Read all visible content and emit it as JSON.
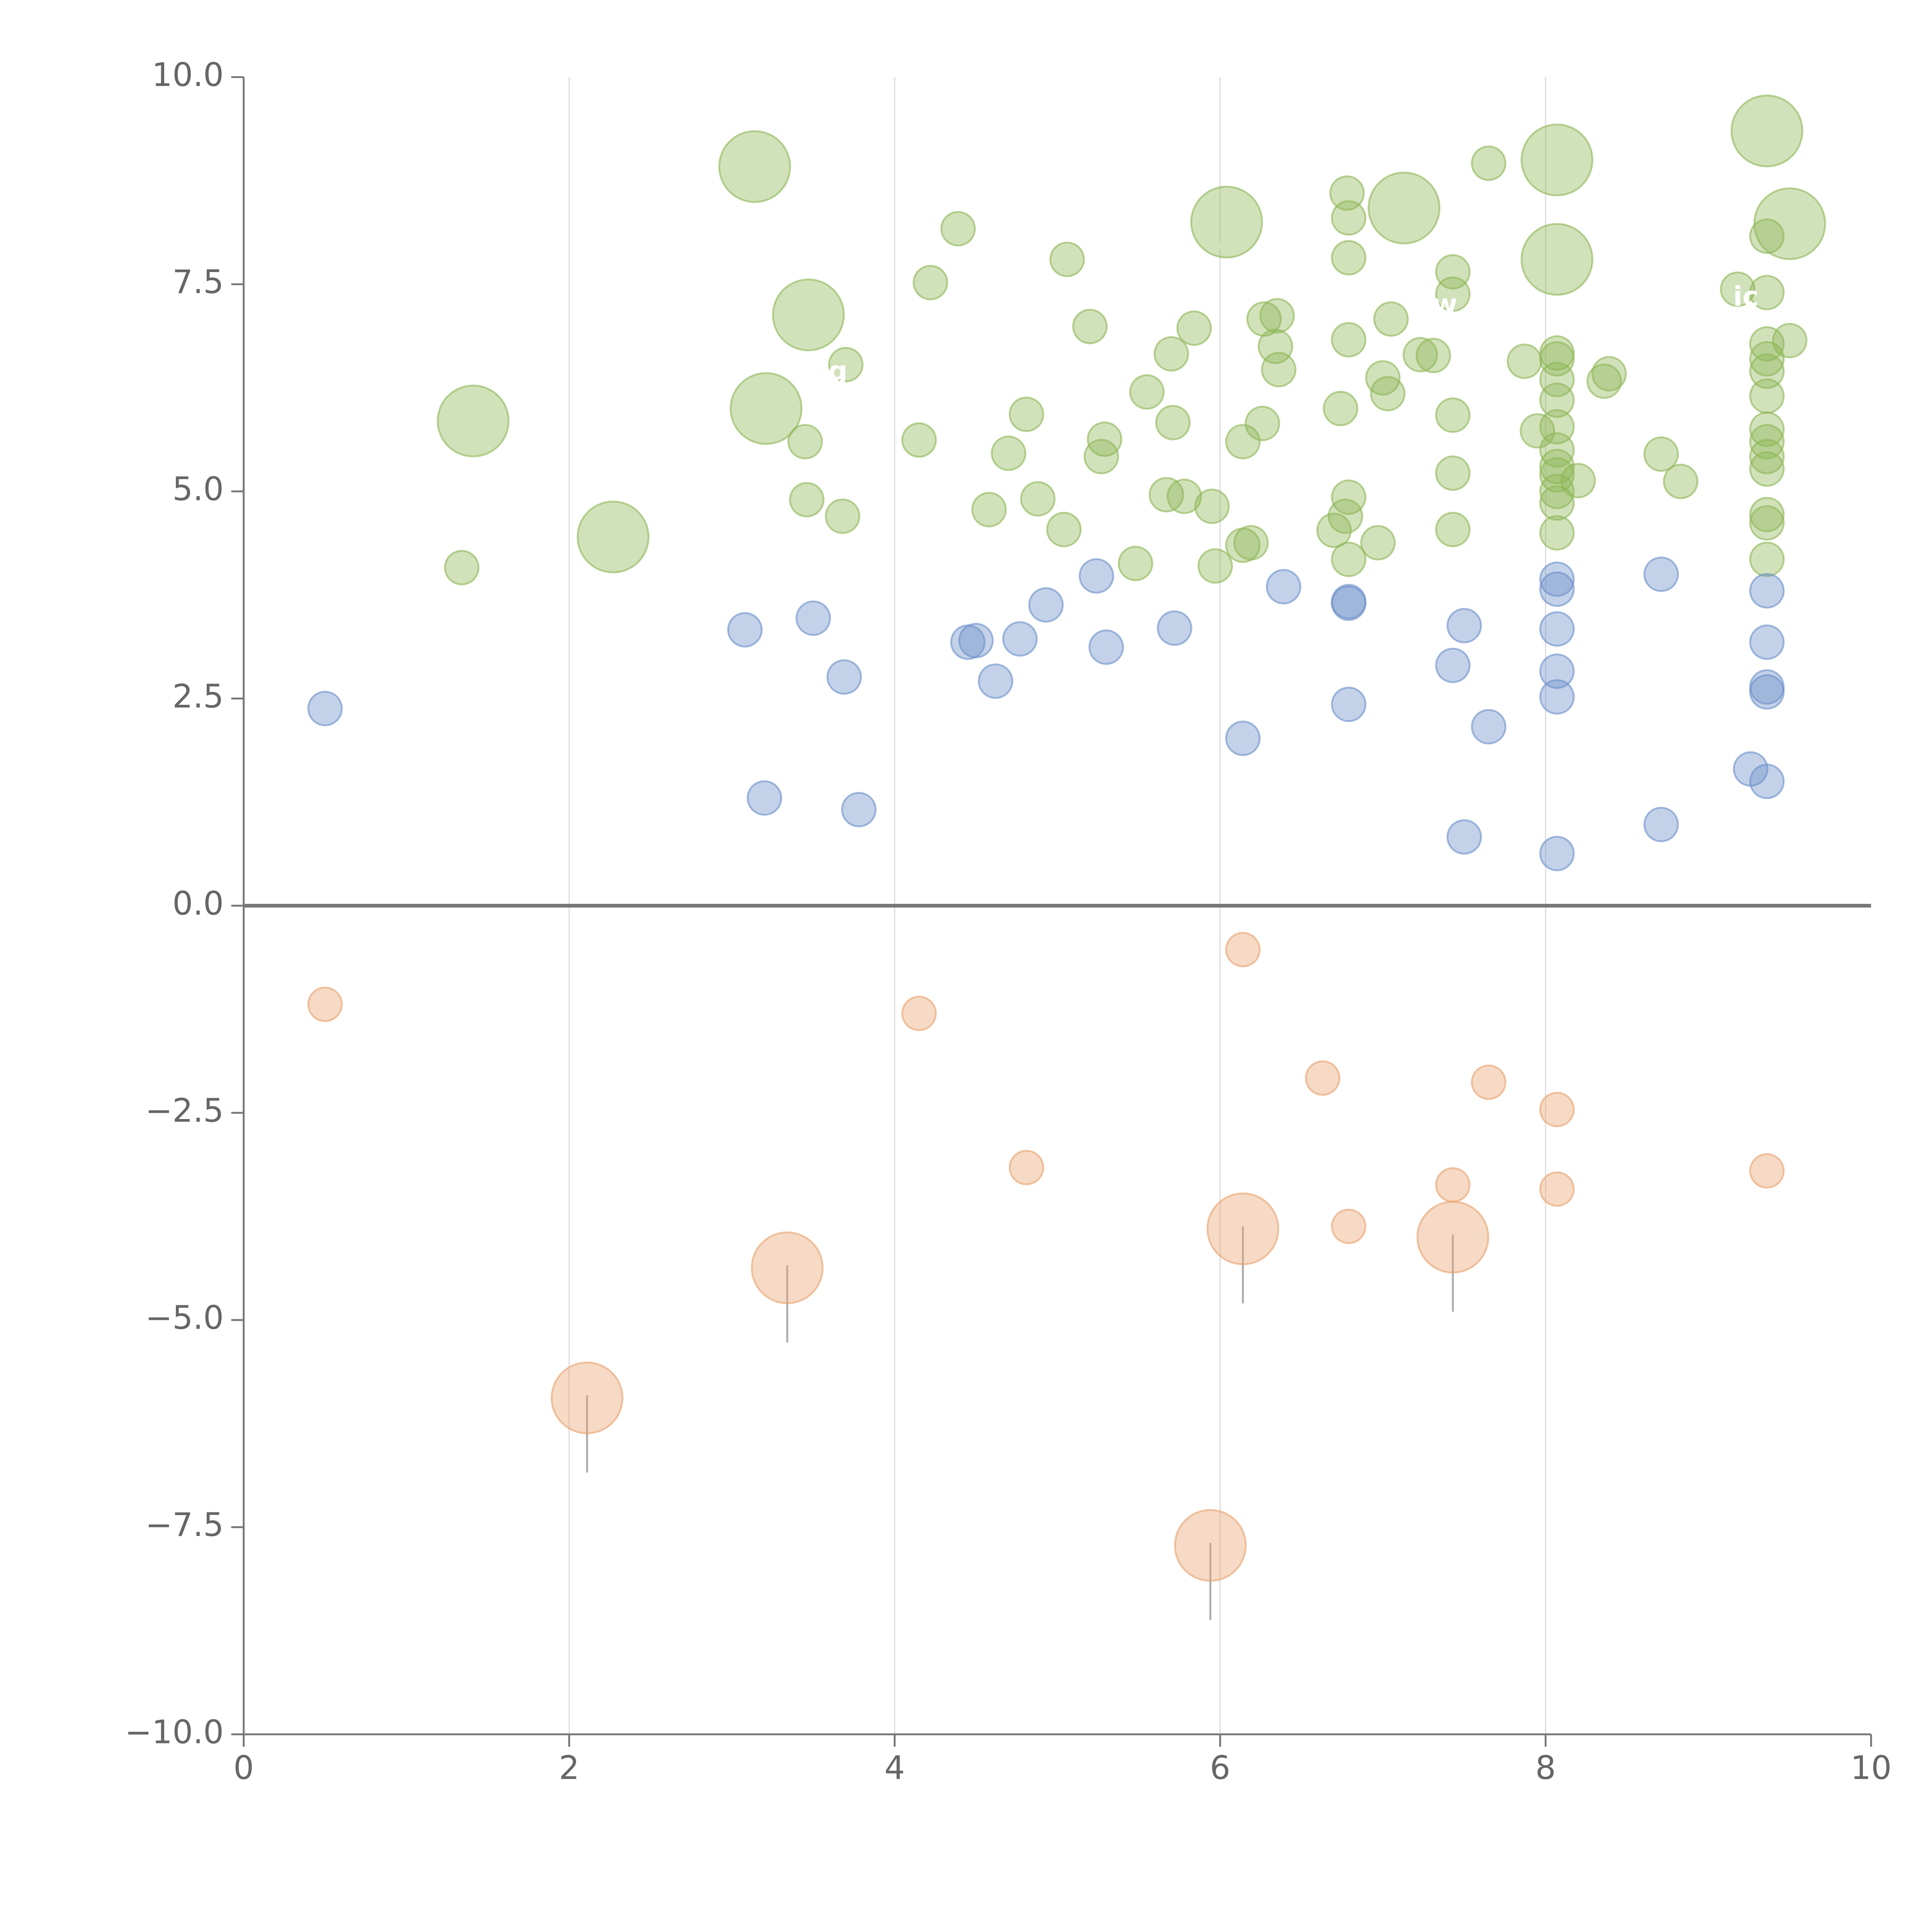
{
  "chart_data": {
    "type": "scatter",
    "title": "",
    "xlabel": "",
    "ylabel": "",
    "xlim": [
      0,
      10
    ],
    "ylim": [
      -10,
      10
    ],
    "x_ticks": [
      "0",
      "2",
      "4",
      "6",
      "8",
      "10"
    ],
    "y_ticks": [
      "10.0",
      "7.5",
      "5.0",
      "2.5",
      "0.0",
      "−2.5",
      "−5.0",
      "−7.5",
      "−10.0"
    ],
    "x_tick_values": [
      0,
      2,
      4,
      6,
      8,
      10
    ],
    "y_tick_values": [
      10,
      7.5,
      5,
      2.5,
      0,
      -2.5,
      -5,
      -7.5,
      -10
    ],
    "vertical_grid": true,
    "horizontal_grid": false,
    "zero_line": true,
    "series": [
      {
        "name": "green",
        "color": "#8db655",
        "points": [
          [
            3.14,
            8.92,
            2
          ],
          [
            3.47,
            7.13,
            2
          ],
          [
            3.21,
            6.0,
            2
          ],
          [
            1.41,
            5.85,
            2
          ],
          [
            2.27,
            4.45,
            2
          ],
          [
            1.34,
            4.08,
            1
          ],
          [
            6.04,
            8.25,
            2
          ],
          [
            7.13,
            8.42,
            2
          ],
          [
            8.07,
            9.0,
            2
          ],
          [
            9.36,
            9.35,
            2
          ],
          [
            9.5,
            8.23,
            2
          ],
          [
            8.07,
            7.8,
            2
          ],
          [
            4.39,
            8.17,
            1
          ],
          [
            4.22,
            7.52,
            1
          ],
          [
            5.06,
            7.8,
            1
          ],
          [
            5.2,
            6.99,
            1
          ],
          [
            5.84,
            6.97,
            1
          ],
          [
            5.7,
            6.66,
            1
          ],
          [
            5.55,
            6.2,
            1
          ],
          [
            5.71,
            5.83,
            1
          ],
          [
            6.27,
            7.08,
            1
          ],
          [
            6.35,
            7.12,
            1
          ],
          [
            6.34,
            6.75,
            1
          ],
          [
            6.36,
            6.47,
            1
          ],
          [
            6.26,
            5.82,
            1
          ],
          [
            6.14,
            5.6,
            1
          ],
          [
            6.78,
            8.6,
            1
          ],
          [
            6.79,
            8.3,
            1
          ],
          [
            6.79,
            7.82,
            1
          ],
          [
            6.79,
            6.83,
            1
          ],
          [
            6.74,
            6.0,
            1
          ],
          [
            7.05,
            7.08,
            1
          ],
          [
            7.0,
            6.37,
            1
          ],
          [
            7.03,
            6.18,
            1
          ],
          [
            7.23,
            6.65,
            1
          ],
          [
            7.31,
            6.64,
            1
          ],
          [
            7.43,
            7.65,
            1
          ],
          [
            7.43,
            7.38,
            1
          ],
          [
            7.43,
            5.92,
            1
          ],
          [
            7.43,
            5.22,
            1
          ],
          [
            7.43,
            4.54,
            1
          ],
          [
            7.65,
            8.96,
            1
          ],
          [
            7.87,
            6.57,
            1
          ],
          [
            7.95,
            5.73,
            1
          ],
          [
            8.07,
            6.67,
            1
          ],
          [
            8.07,
            6.6,
            1
          ],
          [
            8.07,
            6.35,
            1
          ],
          [
            8.07,
            6.1,
            1
          ],
          [
            8.07,
            5.78,
            1
          ],
          [
            8.07,
            5.5,
            1
          ],
          [
            8.07,
            5.3,
            1
          ],
          [
            8.07,
            5.2,
            1
          ],
          [
            8.07,
            5.0,
            1
          ],
          [
            8.07,
            4.86,
            1
          ],
          [
            8.07,
            4.5,
            1
          ],
          [
            8.2,
            5.13,
            1
          ],
          [
            8.36,
            6.33,
            1
          ],
          [
            8.39,
            6.42,
            1
          ],
          [
            8.71,
            5.45,
            1
          ],
          [
            8.83,
            5.12,
            1
          ],
          [
            9.18,
            7.44,
            1
          ],
          [
            9.36,
            8.08,
            1
          ],
          [
            9.36,
            7.4,
            1
          ],
          [
            9.36,
            6.78,
            1
          ],
          [
            9.36,
            6.6,
            1
          ],
          [
            9.36,
            6.45,
            1
          ],
          [
            9.36,
            6.15,
            1
          ],
          [
            9.36,
            5.75,
            1
          ],
          [
            9.36,
            5.6,
            1
          ],
          [
            9.36,
            5.42,
            1
          ],
          [
            9.36,
            5.27,
            1
          ],
          [
            9.36,
            4.72,
            1
          ],
          [
            9.36,
            4.62,
            1
          ],
          [
            9.36,
            4.18,
            1
          ],
          [
            9.5,
            6.82,
            1
          ],
          [
            3.7,
            6.53,
            1
          ],
          [
            3.45,
            5.6,
            1
          ],
          [
            4.15,
            5.62,
            1
          ],
          [
            4.81,
            5.93,
            1
          ],
          [
            4.7,
            5.46,
            1
          ],
          [
            5.29,
            5.63,
            1
          ],
          [
            5.27,
            5.42,
            1
          ],
          [
            3.46,
            4.9,
            1
          ],
          [
            3.68,
            4.7,
            1
          ],
          [
            4.58,
            4.78,
            1
          ],
          [
            4.88,
            4.91,
            1
          ],
          [
            5.04,
            4.54,
            1
          ],
          [
            5.48,
            4.13,
            1
          ],
          [
            5.67,
            4.96,
            1
          ],
          [
            5.78,
            4.94,
            1
          ],
          [
            5.95,
            4.82,
            1
          ],
          [
            5.97,
            4.1,
            1
          ],
          [
            6.14,
            4.35,
            1
          ],
          [
            6.19,
            4.38,
            1
          ],
          [
            6.7,
            4.53,
            1
          ],
          [
            6.77,
            4.7,
            1
          ],
          [
            6.79,
            4.93,
            1
          ],
          [
            6.79,
            4.18,
            1
          ],
          [
            6.97,
            4.38,
            1
          ]
        ]
      },
      {
        "name": "blue",
        "color": "#6b8fc9",
        "points": [
          [
            0.5,
            2.38,
            1
          ],
          [
            3.08,
            3.33,
            1
          ],
          [
            3.5,
            3.47,
            1
          ],
          [
            3.69,
            2.76,
            1
          ],
          [
            3.2,
            1.3,
            1
          ],
          [
            3.78,
            1.16,
            1
          ],
          [
            4.45,
            3.18,
            1
          ],
          [
            4.5,
            3.2,
            1
          ],
          [
            4.77,
            3.22,
            1
          ],
          [
            4.93,
            3.63,
            1
          ],
          [
            4.62,
            2.71,
            1
          ],
          [
            5.24,
            3.98,
            1
          ],
          [
            5.3,
            3.12,
            1
          ],
          [
            5.72,
            3.35,
            1
          ],
          [
            6.14,
            2.02,
            1
          ],
          [
            6.39,
            3.85,
            1
          ],
          [
            6.79,
            3.67,
            1
          ],
          [
            6.79,
            3.65,
            1
          ],
          [
            6.79,
            2.43,
            1
          ],
          [
            7.43,
            2.9,
            1
          ],
          [
            7.5,
            3.38,
            1
          ],
          [
            7.65,
            2.16,
            1
          ],
          [
            7.5,
            0.83,
            1
          ],
          [
            8.07,
            3.94,
            1
          ],
          [
            8.07,
            3.82,
            1
          ],
          [
            8.07,
            3.34,
            1
          ],
          [
            8.07,
            2.83,
            1
          ],
          [
            8.07,
            2.52,
            1
          ],
          [
            8.07,
            0.63,
            1
          ],
          [
            8.71,
            4.0,
            1
          ],
          [
            8.71,
            0.98,
            1
          ],
          [
            9.36,
            3.8,
            1
          ],
          [
            9.36,
            3.18,
            1
          ],
          [
            9.36,
            2.64,
            1
          ],
          [
            9.36,
            2.58,
            1
          ],
          [
            9.26,
            1.65,
            1
          ],
          [
            9.36,
            1.5,
            1
          ]
        ]
      },
      {
        "name": "orange",
        "color": "#e8a26e",
        "points": [
          [
            0.5,
            -1.19,
            1
          ],
          [
            4.15,
            -1.3,
            1
          ],
          [
            6.14,
            -0.53,
            1
          ],
          [
            6.63,
            -2.08,
            1
          ],
          [
            7.65,
            -2.13,
            1
          ],
          [
            8.07,
            -2.46,
            1
          ],
          [
            4.81,
            -3.16,
            1
          ],
          [
            7.43,
            -3.37,
            1
          ],
          [
            8.07,
            -3.42,
            1
          ],
          [
            9.36,
            -3.2,
            1
          ],
          [
            6.79,
            -3.87,
            1
          ],
          [
            3.34,
            -4.37,
            2
          ],
          [
            6.14,
            -3.9,
            2
          ],
          [
            7.43,
            -4.0,
            2
          ],
          [
            2.11,
            -5.94,
            2
          ],
          [
            5.94,
            -7.72,
            2
          ]
        ]
      }
    ],
    "annotations": [
      "g",
      "w",
      "ic"
    ]
  }
}
